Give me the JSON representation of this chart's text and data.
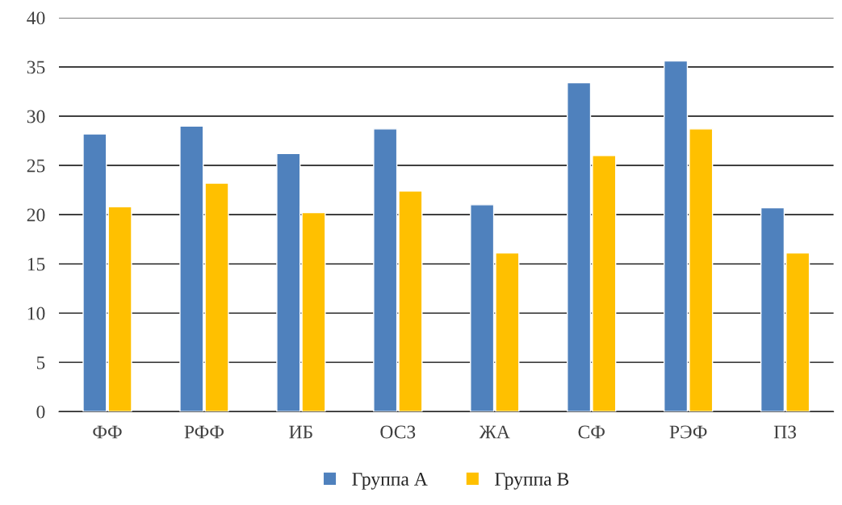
{
  "chart_data": {
    "type": "bar",
    "categories": [
      "ФФ",
      "РФФ",
      "ИБ",
      "ОСЗ",
      "ЖА",
      "СФ",
      "РЭФ",
      "ПЗ"
    ],
    "series": [
      {
        "name": "Группа А",
        "color": "#4f81bd",
        "values": [
          28.2,
          29.0,
          26.2,
          28.7,
          21.0,
          33.4,
          35.6,
          20.7
        ]
      },
      {
        "name": "Группа В",
        "color": "#ffc000",
        "values": [
          20.8,
          23.2,
          20.2,
          22.4,
          16.1,
          26.0,
          28.7,
          16.1
        ]
      }
    ],
    "ylim": [
      0,
      40
    ],
    "yticks": [
      0,
      5,
      10,
      15,
      20,
      25,
      30,
      35,
      40
    ],
    "grid": "y",
    "legend": "bottom"
  }
}
